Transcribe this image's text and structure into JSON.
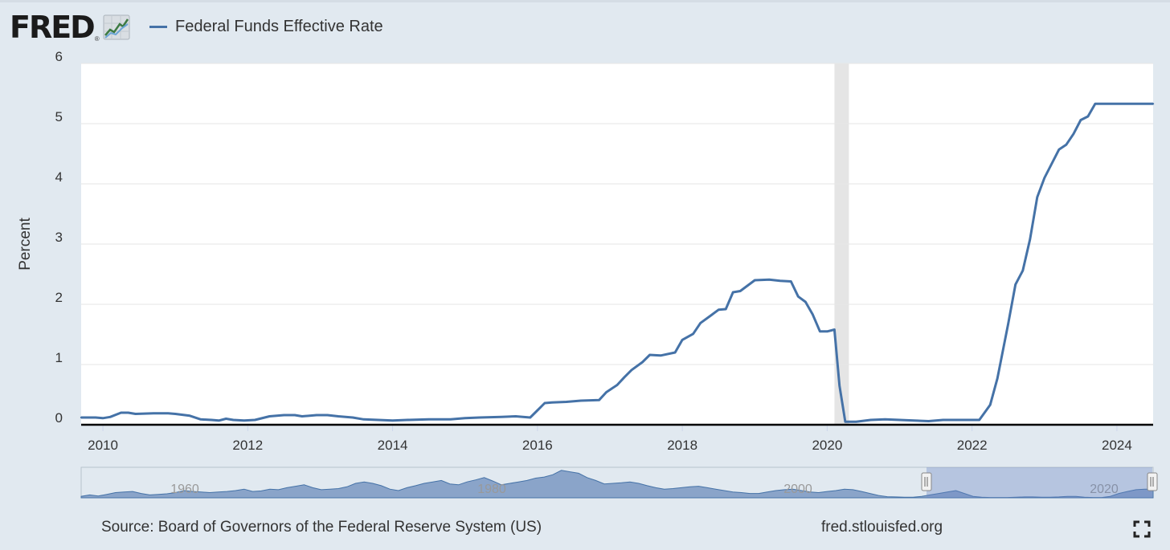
{
  "header": {
    "logo_text": "FRED",
    "logo_reg": "®",
    "legend_label": "Federal Funds Effective Rate",
    "legend_color": "#4572a7"
  },
  "footer": {
    "source": "Source: Board of Governors of the Federal Reserve System (US)",
    "url": "fred.stlouisfed.org"
  },
  "chart_data": {
    "type": "line",
    "title": "Federal Funds Effective Rate",
    "ylabel": "Percent",
    "xlabel": "",
    "ylim": [
      0,
      6
    ],
    "xlim": [
      2009.7,
      2024.5
    ],
    "y_ticks": [
      0,
      1,
      2,
      3,
      4,
      5,
      6
    ],
    "x_ticks": [
      2010,
      2012,
      2014,
      2016,
      2018,
      2020,
      2022,
      2024
    ],
    "grid": true,
    "recession_band": [
      2020.1,
      2020.3
    ],
    "series": [
      {
        "name": "Federal Funds Effective Rate",
        "color": "#4572a7",
        "points": [
          [
            2009.7,
            0.12
          ],
          [
            2009.9,
            0.12
          ],
          [
            2010.0,
            0.11
          ],
          [
            2010.1,
            0.13
          ],
          [
            2010.25,
            0.2
          ],
          [
            2010.35,
            0.2
          ],
          [
            2010.45,
            0.18
          ],
          [
            2010.7,
            0.19
          ],
          [
            2010.9,
            0.19
          ],
          [
            2011.0,
            0.18
          ],
          [
            2011.2,
            0.15
          ],
          [
            2011.35,
            0.09
          ],
          [
            2011.5,
            0.08
          ],
          [
            2011.6,
            0.07
          ],
          [
            2011.7,
            0.1
          ],
          [
            2011.8,
            0.08
          ],
          [
            2011.95,
            0.07
          ],
          [
            2012.1,
            0.08
          ],
          [
            2012.3,
            0.14
          ],
          [
            2012.5,
            0.16
          ],
          [
            2012.65,
            0.16
          ],
          [
            2012.75,
            0.14
          ],
          [
            2012.95,
            0.16
          ],
          [
            2013.1,
            0.16
          ],
          [
            2013.25,
            0.14
          ],
          [
            2013.45,
            0.12
          ],
          [
            2013.6,
            0.09
          ],
          [
            2013.8,
            0.08
          ],
          [
            2014.0,
            0.07
          ],
          [
            2014.2,
            0.08
          ],
          [
            2014.5,
            0.09
          ],
          [
            2014.8,
            0.09
          ],
          [
            2015.0,
            0.11
          ],
          [
            2015.2,
            0.12
          ],
          [
            2015.5,
            0.13
          ],
          [
            2015.7,
            0.14
          ],
          [
            2015.9,
            0.12
          ],
          [
            2016.0,
            0.24
          ],
          [
            2016.1,
            0.36
          ],
          [
            2016.2,
            0.37
          ],
          [
            2016.4,
            0.38
          ],
          [
            2016.6,
            0.4
          ],
          [
            2016.85,
            0.41
          ],
          [
            2016.95,
            0.54
          ],
          [
            2017.1,
            0.66
          ],
          [
            2017.2,
            0.79
          ],
          [
            2017.3,
            0.91
          ],
          [
            2017.45,
            1.04
          ],
          [
            2017.55,
            1.16
          ],
          [
            2017.7,
            1.15
          ],
          [
            2017.9,
            1.2
          ],
          [
            2018.0,
            1.41
          ],
          [
            2018.15,
            1.51
          ],
          [
            2018.25,
            1.69
          ],
          [
            2018.4,
            1.82
          ],
          [
            2018.5,
            1.91
          ],
          [
            2018.6,
            1.92
          ],
          [
            2018.7,
            2.2
          ],
          [
            2018.8,
            2.22
          ],
          [
            2019.0,
            2.4
          ],
          [
            2019.2,
            2.41
          ],
          [
            2019.35,
            2.39
          ],
          [
            2019.5,
            2.38
          ],
          [
            2019.6,
            2.13
          ],
          [
            2019.7,
            2.04
          ],
          [
            2019.8,
            1.83
          ],
          [
            2019.9,
            1.55
          ],
          [
            2020.0,
            1.55
          ],
          [
            2020.1,
            1.58
          ],
          [
            2020.17,
            0.65
          ],
          [
            2020.25,
            0.05
          ],
          [
            2020.4,
            0.05
          ],
          [
            2020.6,
            0.08
          ],
          [
            2020.8,
            0.09
          ],
          [
            2021.0,
            0.08
          ],
          [
            2021.2,
            0.07
          ],
          [
            2021.4,
            0.06
          ],
          [
            2021.6,
            0.08
          ],
          [
            2021.8,
            0.08
          ],
          [
            2022.0,
            0.08
          ],
          [
            2022.1,
            0.08
          ],
          [
            2022.25,
            0.33
          ],
          [
            2022.35,
            0.77
          ],
          [
            2022.5,
            1.68
          ],
          [
            2022.6,
            2.33
          ],
          [
            2022.7,
            2.56
          ],
          [
            2022.8,
            3.08
          ],
          [
            2022.9,
            3.78
          ],
          [
            2023.0,
            4.1
          ],
          [
            2023.2,
            4.57
          ],
          [
            2023.3,
            4.65
          ],
          [
            2023.4,
            4.83
          ],
          [
            2023.5,
            5.06
          ],
          [
            2023.6,
            5.12
          ],
          [
            2023.7,
            5.33
          ],
          [
            2024.5,
            5.33
          ]
        ]
      }
    ]
  },
  "navigator": {
    "labels": [
      "1960",
      "1980",
      "2000",
      "2020"
    ],
    "profile": [
      0.05,
      0.1,
      0.06,
      0.12,
      0.18,
      0.2,
      0.22,
      0.15,
      0.1,
      0.12,
      0.14,
      0.18,
      0.25,
      0.22,
      0.2,
      0.18,
      0.2,
      0.22,
      0.25,
      0.3,
      0.22,
      0.24,
      0.3,
      0.28,
      0.35,
      0.4,
      0.45,
      0.35,
      0.28,
      0.3,
      0.32,
      0.38,
      0.5,
      0.55,
      0.5,
      0.42,
      0.3,
      0.25,
      0.35,
      0.42,
      0.5,
      0.55,
      0.6,
      0.48,
      0.45,
      0.55,
      0.62,
      0.7,
      0.58,
      0.45,
      0.5,
      0.55,
      0.6,
      0.68,
      0.72,
      0.8,
      0.95,
      0.9,
      0.85,
      0.7,
      0.6,
      0.48,
      0.5,
      0.52,
      0.55,
      0.5,
      0.42,
      0.35,
      0.3,
      0.32,
      0.35,
      0.38,
      0.4,
      0.35,
      0.3,
      0.25,
      0.2,
      0.18,
      0.15,
      0.15,
      0.2,
      0.25,
      0.28,
      0.3,
      0.25,
      0.2,
      0.18,
      0.22,
      0.25,
      0.3,
      0.28,
      0.22,
      0.15,
      0.08,
      0.04,
      0.03,
      0.02,
      0.02,
      0.05,
      0.1,
      0.15,
      0.2,
      0.25,
      0.15,
      0.05,
      0.02,
      0.01,
      0.01,
      0.01,
      0.02,
      0.03,
      0.03,
      0.02,
      0.02,
      0.03,
      0.05,
      0.05,
      0.02,
      0.01,
      0.01,
      0.05,
      0.15,
      0.22,
      0.28,
      0.3,
      0.3
    ]
  }
}
